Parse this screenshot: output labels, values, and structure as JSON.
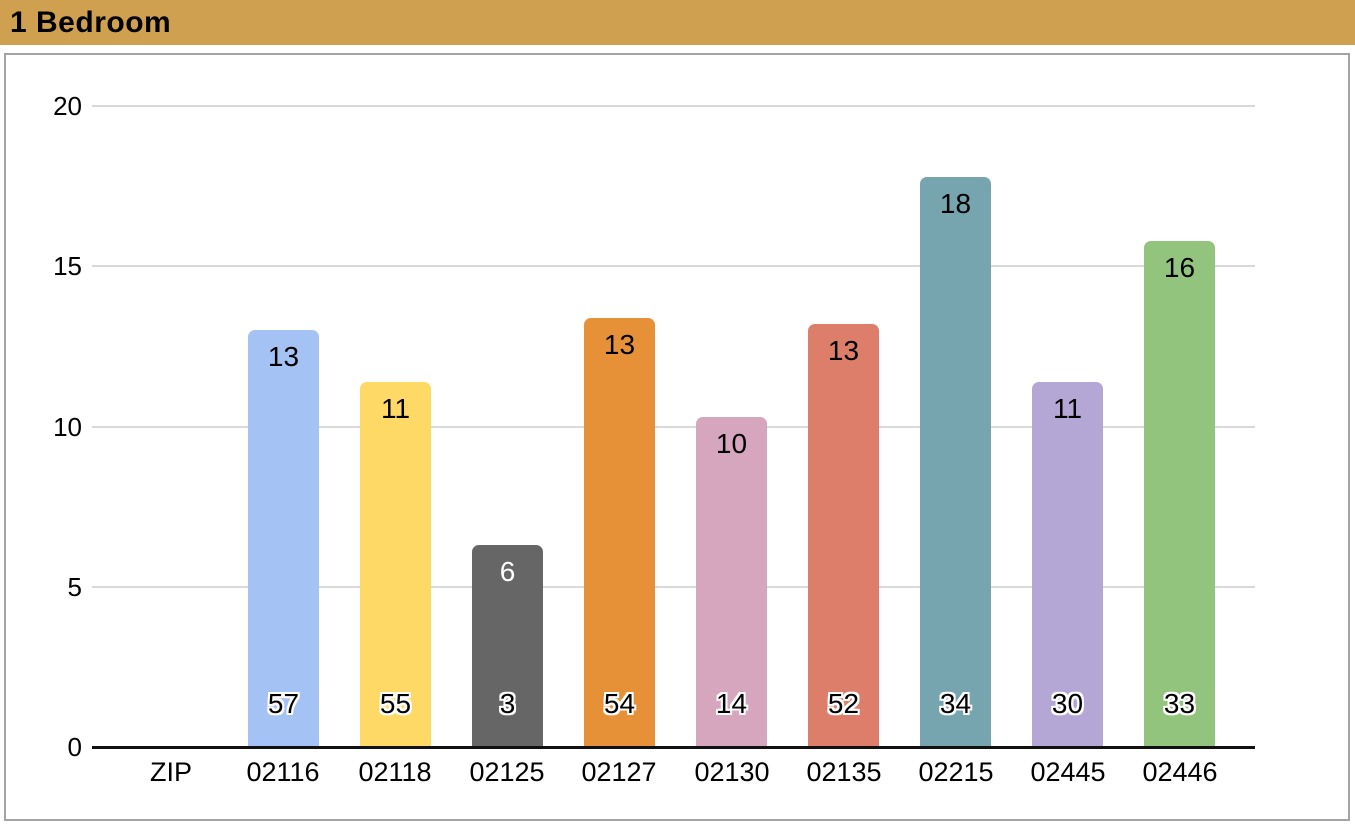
{
  "header": {
    "title": "1 Bedroom"
  },
  "colors": {
    "header_bg": "#cfa04f",
    "frame_border": "#a3a3a3",
    "grid": "#d9d9d9",
    "axis": "#111111",
    "label_outline": "#ffffff"
  },
  "chart_data": {
    "type": "bar",
    "title": "1 Bedroom",
    "categories": [
      "ZIP",
      "02116",
      "02118",
      "02125",
      "02127",
      "02130",
      "02135",
      "02215",
      "02445",
      "02446"
    ],
    "series": [
      {
        "name": "1 Bedroom",
        "values": [
          null,
          13.0,
          11.4,
          6.3,
          13.4,
          10.3,
          13.2,
          17.8,
          11.4,
          15.8
        ]
      }
    ],
    "bar_top_labels": [
      "",
      "13",
      "11",
      "6",
      "13",
      "10",
      "13",
      "18",
      "11",
      "16"
    ],
    "bar_bottom_labels": [
      "",
      "57",
      "55",
      "3",
      "54",
      "14",
      "52",
      "34",
      "30",
      "33"
    ],
    "bar_colors": [
      "",
      "#a4c2f4",
      "#ffd966",
      "#666666",
      "#e69138",
      "#d5a6bd",
      "#dd7e6b",
      "#76a5af",
      "#b4a7d6",
      "#93c47d"
    ],
    "bar_top_label_colors": [
      "",
      "#000000",
      "#000000",
      "#ffffff",
      "#000000",
      "#000000",
      "#000000",
      "#000000",
      "#000000",
      "#000000"
    ],
    "xlabel": "",
    "ylabel": "",
    "y_axis": {
      "min": 0,
      "max": 20,
      "ticks": [
        0,
        5,
        10,
        15,
        20
      ]
    },
    "grid": true,
    "legend": false
  }
}
